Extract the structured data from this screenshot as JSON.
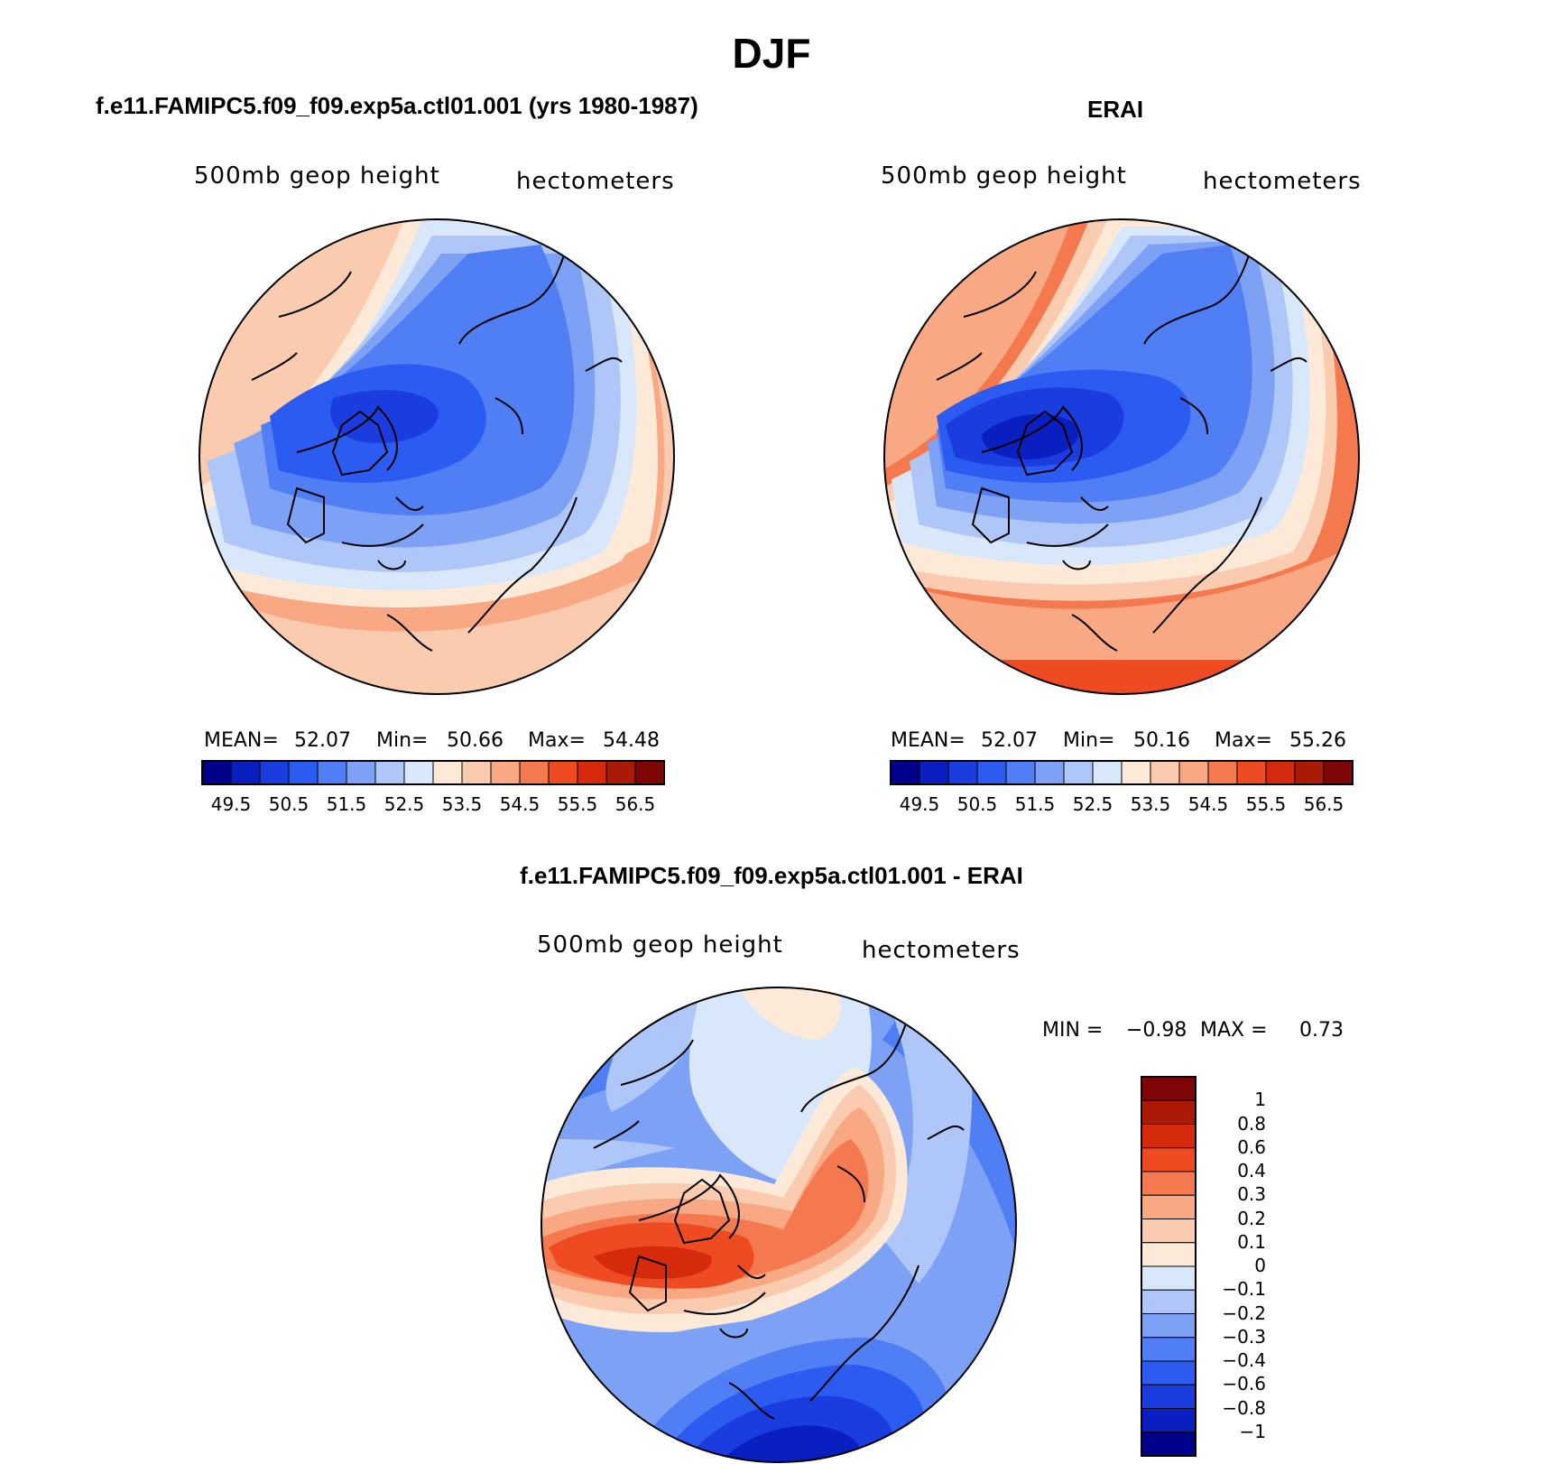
{
  "figure": {
    "title": "DJF"
  },
  "panels": [
    {
      "id": "model",
      "title": "f.e11.FAMIPC5.f09_f09.exp5a.ctl01.001 (yrs 1980-1987)",
      "left_label": "500mb  geop  height",
      "right_label": "hectometers",
      "stats": {
        "mean_label": "MEAN=",
        "mean": "52.07",
        "min_label": "Min=",
        "min": "50.66",
        "max_label": "Max=",
        "max": "54.48"
      }
    },
    {
      "id": "obs",
      "title": "ERAI",
      "left_label": "500mb  geop  height",
      "right_label": "hectometers",
      "stats": {
        "mean_label": "MEAN=",
        "mean": "52.07",
        "min_label": "Min=",
        "min": "50.16",
        "max_label": "Max=",
        "max": "55.26"
      }
    },
    {
      "id": "diff",
      "title": "f.e11.FAMIPC5.f09_f09.exp5a.ctl01.001 - ERAI",
      "left_label": "500mb  geop  height",
      "right_label": "hectometers",
      "stats": {
        "min_label": "MIN =",
        "min": "−0.98",
        "max_label": "MAX =",
        "max": "0.73"
      }
    }
  ],
  "colorbars": {
    "absolute": {
      "colors": [
        "#00008b",
        "#0a1fbf",
        "#1b3de0",
        "#2c5bf2",
        "#4f7ef5",
        "#7da1f5",
        "#aec6f8",
        "#d9e7fb",
        "#fde9d8",
        "#fbcbb0",
        "#f9a884",
        "#f5794f",
        "#ef4b23",
        "#d52a0c",
        "#ab1a06",
        "#7e0606"
      ],
      "ticks": [
        "49.5",
        "50.5",
        "51.5",
        "52.5",
        "53.5",
        "54.5",
        "55.5",
        "56.5"
      ]
    },
    "difference": {
      "colors": [
        "#00008b",
        "#0a1fbf",
        "#1b3de0",
        "#2c5bf2",
        "#4f7ef5",
        "#7da1f5",
        "#aec6f8",
        "#d9e7fb",
        "#fde9d8",
        "#fbcbb0",
        "#f9a884",
        "#f5794f",
        "#ef4b23",
        "#d52a0c",
        "#ab1a06",
        "#7e0606"
      ],
      "ticks": [
        "1",
        "0.8",
        "0.6",
        "0.4",
        "0.3",
        "0.2",
        "0.1",
        "0",
        "−0.1",
        "−0.2",
        "−0.3",
        "−0.4",
        "−0.6",
        "−0.8",
        "−1"
      ]
    }
  }
}
